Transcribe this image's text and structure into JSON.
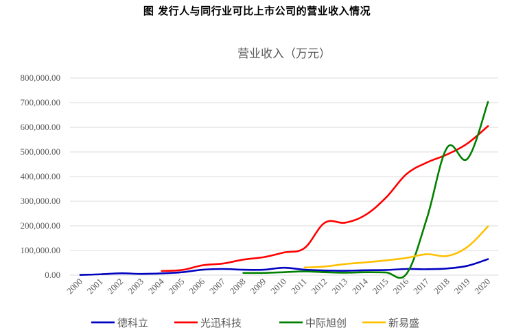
{
  "figure_title": "图  发行人与同行业可比上市公司的营业收入情况",
  "chart_data": {
    "type": "line",
    "title": "营业收入（万元）",
    "xlabel": "",
    "ylabel": "",
    "ylim": [
      0,
      800000
    ],
    "yticks": [
      "0.00",
      "100,000.00",
      "200,000.00",
      "300,000.00",
      "400,000.00",
      "500,000.00",
      "600,000.00",
      "700,000.00",
      "800,000.00"
    ],
    "x": [
      "2000",
      "2001",
      "2002",
      "2003",
      "2004",
      "2005",
      "2006",
      "2007",
      "2008",
      "2009",
      "2010",
      "2011",
      "2012",
      "2013",
      "2014",
      "2015",
      "2016",
      "2017",
      "2018",
      "2019",
      "2020"
    ],
    "grid": true,
    "legend_position": "bottom",
    "series": [
      {
        "name": "德科立",
        "color": "#0000C0",
        "values": [
          1000,
          3500,
          7500,
          5000,
          7000,
          12000,
          22000,
          25000,
          22000,
          22000,
          30000,
          22000,
          19000,
          18000,
          20000,
          21000,
          25000,
          24000,
          27000,
          38000,
          65000
        ]
      },
      {
        "name": "光迅科技",
        "color": "#FF0000",
        "values": [
          null,
          null,
          null,
          null,
          17000,
          21000,
          40000,
          47000,
          63000,
          73000,
          92000,
          110000,
          213000,
          213000,
          245000,
          315000,
          410000,
          457000,
          490000,
          535000,
          605000
        ]
      },
      {
        "name": "中际旭创",
        "color": "#008000",
        "values": [
          null,
          null,
          null,
          null,
          null,
          null,
          null,
          null,
          9000,
          9000,
          12000,
          15000,
          12000,
          10000,
          12000,
          11000,
          5000,
          230000,
          518000,
          473000,
          703000
        ]
      },
      {
        "name": "新易盛",
        "color": "#FFC000",
        "values": [
          null,
          null,
          null,
          null,
          null,
          null,
          null,
          null,
          null,
          null,
          null,
          31000,
          35000,
          45000,
          52000,
          60000,
          70000,
          85000,
          78000,
          115000,
          198000
        ]
      }
    ]
  }
}
